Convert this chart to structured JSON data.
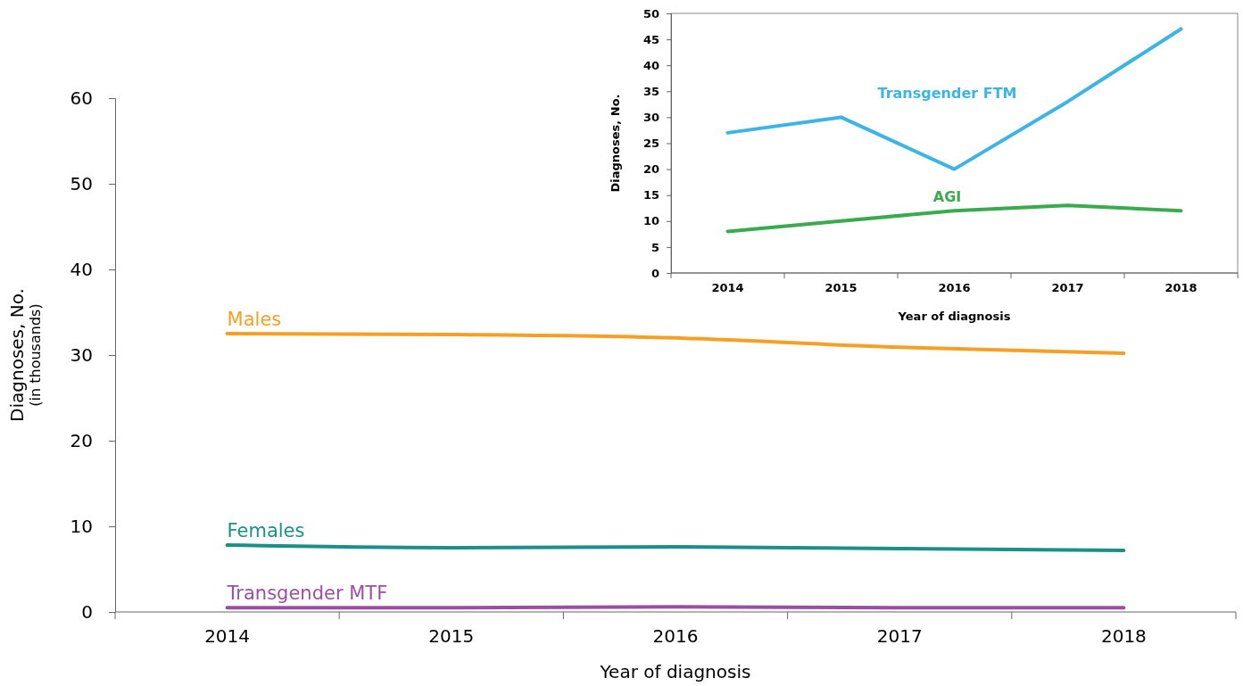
{
  "chart_data": [
    {
      "type": "line",
      "xlabel": "Year of diagnosis",
      "ylabel": "Diagnoses, No.\n(in thousands)",
      "categories": [
        "2014",
        "2015",
        "2016",
        "2017",
        "2018"
      ],
      "ylim": [
        0,
        60
      ],
      "yticks": [
        0,
        10,
        20,
        30,
        40,
        50,
        60
      ],
      "grid": false,
      "legend": false,
      "marker": "none",
      "line_style": "solid",
      "series": [
        {
          "name": "Males",
          "color": "#f5a024",
          "values": [
            32.5,
            32.4,
            32.0,
            30.9,
            30.2
          ]
        },
        {
          "name": "Females",
          "color": "#1a9088",
          "values": [
            7.8,
            7.5,
            7.6,
            7.4,
            7.2
          ]
        },
        {
          "name": "Transgender MTF",
          "color": "#9b4fa0",
          "values": [
            0.5,
            0.5,
            0.6,
            0.5,
            0.5
          ]
        }
      ]
    },
    {
      "type": "line",
      "xlabel": "Year of diagnosis",
      "ylabel": "Diagnoses, No.",
      "categories": [
        "2014",
        "2015",
        "2016",
        "2017",
        "2018"
      ],
      "ylim": [
        0,
        50
      ],
      "yticks": [
        0,
        5,
        10,
        15,
        20,
        25,
        30,
        35,
        40,
        45,
        50
      ],
      "grid": false,
      "legend": false,
      "marker": "none",
      "line_style": "solid",
      "series": [
        {
          "name": "Transgender FTM",
          "color": "#3cb4e5",
          "values": [
            27,
            30,
            20,
            33,
            47
          ]
        },
        {
          "name": "AGI",
          "color": "#3aaa4f",
          "values": [
            8,
            10,
            12,
            13,
            12
          ]
        }
      ]
    }
  ]
}
